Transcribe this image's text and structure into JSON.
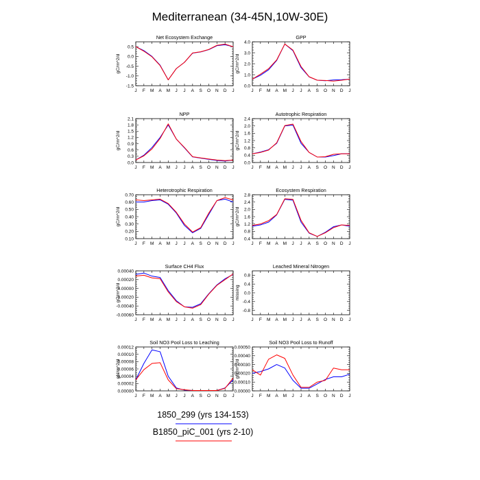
{
  "title": "Mediterranean (34-45N,10W-30E)",
  "month_labels": [
    "J",
    "F",
    "M",
    "A",
    "M",
    "J",
    "J",
    "A",
    "S",
    "O",
    "N",
    "D",
    "J"
  ],
  "legend": {
    "items": [
      {
        "label": "1850_299 (yrs 134-153)",
        "color": "#0000ff"
      },
      {
        "label": "B1850_piC_001 (yrs 2-10)",
        "color": "#ff0000"
      }
    ]
  },
  "colors": {
    "series_a": "#0000ff",
    "series_b": "#ff0000"
  },
  "chart_data": [
    {
      "type": "line",
      "title": "Net Ecosystem Exchange",
      "ylabel": "gC/m^2/d",
      "ylim": [
        -1.5,
        0.75
      ],
      "yticks": [
        -1.5,
        -1.0,
        -0.5,
        0.0,
        0.5
      ],
      "ytick_labels": [
        "-1.5",
        "-1.0",
        "-0.5",
        "0.0",
        "0.5"
      ],
      "x": [
        0,
        1,
        2,
        3,
        4,
        5,
        6,
        7,
        8,
        9,
        10,
        11,
        12
      ],
      "series": [
        {
          "values": [
            0.5,
            0.3,
            0.0,
            -0.45,
            -1.2,
            -0.62,
            -0.3,
            0.17,
            0.23,
            0.35,
            0.55,
            0.6,
            0.5
          ]
        },
        {
          "values": [
            0.5,
            0.27,
            -0.02,
            -0.47,
            -1.2,
            -0.62,
            -0.3,
            0.18,
            0.24,
            0.36,
            0.57,
            0.63,
            0.5
          ]
        }
      ]
    },
    {
      "type": "line",
      "title": "GPP",
      "ylabel": "gC/m^2/d",
      "ylim": [
        0.0,
        4.0
      ],
      "yticks": [
        0.0,
        1.0,
        2.0,
        3.0,
        4.0
      ],
      "ytick_labels": [
        "0.0",
        "1.0",
        "2.0",
        "3.0",
        "4.0"
      ],
      "x": [
        0,
        1,
        2,
        3,
        4,
        5,
        6,
        7,
        8,
        9,
        10,
        11,
        12
      ],
      "series": [
        {
          "values": [
            0.6,
            0.95,
            1.45,
            2.3,
            3.8,
            3.2,
            1.65,
            0.8,
            0.5,
            0.45,
            0.52,
            0.55,
            0.6
          ]
        },
        {
          "values": [
            0.6,
            1.05,
            1.55,
            2.35,
            3.8,
            3.25,
            1.75,
            0.82,
            0.5,
            0.48,
            0.42,
            0.5,
            0.6
          ]
        }
      ]
    },
    {
      "type": "line",
      "title": "NPP",
      "ylabel": "gC/m^2/d",
      "ylim": [
        0.0,
        2.1
      ],
      "yticks": [
        0.0,
        0.3,
        0.6,
        0.9,
        1.2,
        1.5,
        1.8,
        2.1
      ],
      "ytick_labels": [
        "0.0",
        "0.3",
        "0.6",
        "0.9",
        "1.2",
        "1.5",
        "1.8",
        "2.1"
      ],
      "x": [
        0,
        1,
        2,
        3,
        4,
        5,
        6,
        7,
        8,
        9,
        10,
        11,
        12
      ],
      "series": [
        {
          "values": [
            0.12,
            0.35,
            0.72,
            1.2,
            1.8,
            1.12,
            0.7,
            0.27,
            0.21,
            0.15,
            0.1,
            0.07,
            0.12
          ]
        },
        {
          "values": [
            0.12,
            0.32,
            0.65,
            1.15,
            1.85,
            1.12,
            0.72,
            0.28,
            0.22,
            0.17,
            0.12,
            0.09,
            0.12
          ]
        }
      ]
    },
    {
      "type": "line",
      "title": "Autotrophic Respiration",
      "ylabel": "gC/m^2/d",
      "ylim": [
        0.0,
        2.4
      ],
      "yticks": [
        0.0,
        0.4,
        0.8,
        1.2,
        1.6,
        2.0,
        2.4
      ],
      "ytick_labels": [
        "0.0",
        "0.4",
        "0.8",
        "1.2",
        "1.6",
        "2.0",
        "2.4"
      ],
      "x": [
        0,
        1,
        2,
        3,
        4,
        5,
        6,
        7,
        8,
        9,
        10,
        11,
        12
      ],
      "series": [
        {
          "values": [
            0.48,
            0.57,
            0.7,
            1.05,
            2.0,
            2.05,
            1.05,
            0.55,
            0.3,
            0.3,
            0.38,
            0.48,
            0.48
          ]
        },
        {
          "values": [
            0.48,
            0.55,
            0.68,
            1.08,
            2.02,
            2.1,
            1.15,
            0.55,
            0.3,
            0.32,
            0.45,
            0.48,
            0.48
          ]
        }
      ]
    },
    {
      "type": "line",
      "title": "Heterotrophic Respiration",
      "ylabel": "gC/m^2/d",
      "ylim": [
        0.1,
        0.7
      ],
      "yticks": [
        0.1,
        0.2,
        0.3,
        0.4,
        0.5,
        0.6,
        0.7
      ],
      "ytick_labels": [
        "0.10",
        "0.20",
        "0.30",
        "0.40",
        "0.50",
        "0.60",
        "0.70"
      ],
      "x": [
        0,
        1,
        2,
        3,
        4,
        5,
        6,
        7,
        8,
        9,
        10,
        11,
        12
      ],
      "series": [
        {
          "values": [
            0.6,
            0.6,
            0.62,
            0.63,
            0.57,
            0.45,
            0.28,
            0.18,
            0.24,
            0.43,
            0.62,
            0.64,
            0.6
          ]
        },
        {
          "values": [
            0.63,
            0.62,
            0.63,
            0.64,
            0.58,
            0.46,
            0.3,
            0.19,
            0.25,
            0.45,
            0.62,
            0.66,
            0.63
          ]
        }
      ]
    },
    {
      "type": "line",
      "title": "Ecosystem Respiration",
      "ylabel": "gC/m^2/d",
      "ylim": [
        0.4,
        2.8
      ],
      "yticks": [
        0.4,
        0.8,
        1.2,
        1.6,
        2.0,
        2.4,
        2.8
      ],
      "ytick_labels": [
        "0.4",
        "0.8",
        "1.2",
        "1.6",
        "2.0",
        "2.4",
        "2.8"
      ],
      "x": [
        0,
        1,
        2,
        3,
        4,
        5,
        6,
        7,
        8,
        9,
        10,
        11,
        12
      ],
      "series": [
        {
          "values": [
            1.08,
            1.15,
            1.3,
            1.7,
            2.55,
            2.5,
            1.3,
            0.7,
            0.52,
            0.75,
            1.05,
            1.15,
            1.08
          ]
        },
        {
          "values": [
            1.12,
            1.2,
            1.38,
            1.72,
            2.58,
            2.55,
            1.4,
            0.72,
            0.52,
            0.72,
            1.0,
            1.15,
            1.12
          ]
        }
      ]
    },
    {
      "type": "line",
      "title": "Surface CH4 Flux",
      "ylabel": "gC/m^2/d",
      "ylim": [
        -0.0006,
        0.0004
      ],
      "yticks": [
        -0.0006,
        -0.0004,
        -0.0002,
        0.0,
        0.0002,
        0.0004
      ],
      "ytick_labels": [
        "-0.00060",
        "-0.00040",
        "-0.00020",
        "0.00000",
        "0.00020",
        "0.00040"
      ],
      "x": [
        0,
        1,
        2,
        3,
        4,
        5,
        6,
        7,
        8,
        9,
        10,
        11,
        12
      ],
      "series": [
        {
          "values": [
            0.00032,
            0.00035,
            0.00028,
            0.00025,
            -5e-05,
            -0.00028,
            -0.00042,
            -0.00043,
            -0.00035,
            -0.00012,
            8e-05,
            0.00022,
            0.00032
          ]
        },
        {
          "values": [
            0.00028,
            0.0003,
            0.00024,
            0.00022,
            -8e-05,
            -0.0003,
            -0.00042,
            -0.00045,
            -0.00037,
            -0.00013,
            7e-05,
            0.0002,
            0.00033
          ]
        }
      ]
    },
    {
      "type": "line",
      "title": "Leached Mineral Nitrogen",
      "ylabel": "missing",
      "ylim": [
        -1.0,
        1.0
      ],
      "yticks": [
        -0.8,
        -0.4,
        0.0,
        0.4,
        0.8
      ],
      "ytick_labels": [
        "-0.8",
        "-0.4",
        "0.0",
        "0.4",
        "0.8"
      ],
      "x": [
        0,
        1,
        2,
        3,
        4,
        5,
        6,
        7,
        8,
        9,
        10,
        11,
        12
      ],
      "series": []
    },
    {
      "type": "line",
      "title": "Soil NO3 Pool Loss to Leaching",
      "ylabel": "gN/m^2/d",
      "ylim": [
        0.0,
        0.00012
      ],
      "yticks": [
        0.0,
        2e-05,
        4e-05,
        6e-05,
        8e-05,
        0.0001,
        0.00012
      ],
      "ytick_labels": [
        "0.00000",
        "0.00002",
        "0.00004",
        "0.00006",
        "0.00008",
        "0.00010",
        "0.00012"
      ],
      "x": [
        0,
        1,
        2,
        3,
        4,
        5,
        6,
        7,
        8,
        9,
        10,
        11,
        12
      ],
      "series": [
        {
          "values": [
            3e-05,
            7.5e-05,
            0.000112,
            0.000107,
            4e-05,
            8e-06,
            2e-06,
            1e-06,
            1e-06,
            1e-06,
            1e-06,
            8e-06,
            3e-05
          ]
        },
        {
          "values": [
            3e-05,
            5.8e-05,
            7.5e-05,
            7.7e-05,
            3e-05,
            6e-06,
            3e-06,
            1e-06,
            1e-06,
            1e-06,
            1e-06,
            7e-06,
            3.5e-05
          ]
        }
      ]
    },
    {
      "type": "line",
      "title": "Soil NO3 Pool Loss to Runoff",
      "ylabel": "gN/m^2/d",
      "ylim": [
        0.0,
        0.0005
      ],
      "yticks": [
        0.0,
        0.0001,
        0.0002,
        0.0003,
        0.0004,
        0.0005
      ],
      "ytick_labels": [
        "0.00000",
        "0.00010",
        "0.00020",
        "0.00030",
        "0.00040",
        "0.00050"
      ],
      "x": [
        0,
        1,
        2,
        3,
        4,
        5,
        6,
        7,
        8,
        9,
        10,
        11,
        12
      ],
      "series": [
        {
          "values": [
            0.0002,
            0.00022,
            0.00025,
            0.0003,
            0.00026,
            0.00012,
            3e-05,
            3e-05,
            8e-05,
            0.00013,
            0.00016,
            0.00016,
            0.00019
          ]
        },
        {
          "values": [
            0.00024,
            0.00018,
            0.00036,
            0.00041,
            0.00037,
            0.00018,
            4e-05,
            4e-05,
            0.0001,
            0.00012,
            0.00026,
            0.00024,
            0.00024
          ]
        }
      ]
    }
  ]
}
